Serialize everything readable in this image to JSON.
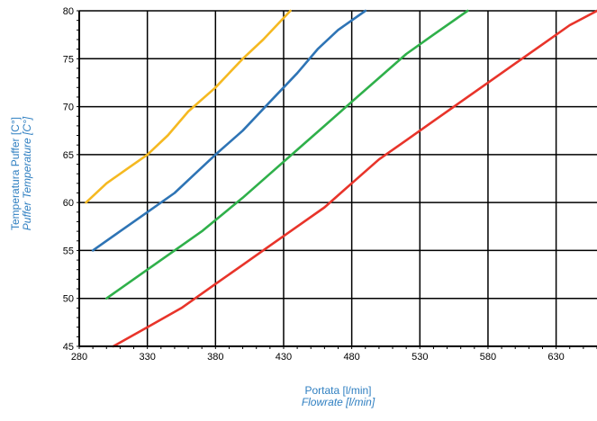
{
  "chart_data": {
    "type": "line",
    "xlabel": "Portata [l/min]",
    "xlabel_en": "Flowrate [l/min]",
    "ylabel": "Temperatura Puffer [C°]",
    "ylabel_en": "Puffer Temperature [C°]",
    "xlim": [
      280,
      660
    ],
    "ylim": [
      45,
      80
    ],
    "xticks": [
      280,
      330,
      380,
      430,
      480,
      530,
      580,
      630
    ],
    "yticks": [
      45,
      50,
      55,
      60,
      65,
      70,
      75,
      80
    ],
    "grid": true,
    "series": [
      {
        "color": "#f5b921",
        "points": [
          [
            285,
            60
          ],
          [
            300,
            62
          ],
          [
            315,
            63.5
          ],
          [
            330,
            65
          ],
          [
            345,
            67
          ],
          [
            360,
            69.5
          ],
          [
            380,
            72
          ],
          [
            400,
            75
          ],
          [
            415,
            77
          ],
          [
            435,
            80
          ]
        ]
      },
      {
        "color": "#2e74b5",
        "points": [
          [
            290,
            55
          ],
          [
            310,
            57
          ],
          [
            330,
            59
          ],
          [
            350,
            61
          ],
          [
            365,
            63
          ],
          [
            380,
            65
          ],
          [
            400,
            67.5
          ],
          [
            420,
            70.5
          ],
          [
            440,
            73.5
          ],
          [
            455,
            76
          ],
          [
            470,
            78
          ],
          [
            490,
            80
          ]
        ]
      },
      {
        "color": "#2fb04a",
        "points": [
          [
            300,
            50
          ],
          [
            325,
            52.5
          ],
          [
            350,
            55
          ],
          [
            370,
            57
          ],
          [
            400,
            60.5
          ],
          [
            420,
            63
          ],
          [
            440,
            65.5
          ],
          [
            460,
            68
          ],
          [
            480,
            70.5
          ],
          [
            500,
            73
          ],
          [
            520,
            75.5
          ],
          [
            540,
            77.5
          ],
          [
            565,
            80
          ]
        ]
      },
      {
        "color": "#e8342a",
        "points": [
          [
            305,
            45
          ],
          [
            330,
            47
          ],
          [
            355,
            49
          ],
          [
            380,
            51.5
          ],
          [
            400,
            53.5
          ],
          [
            420,
            55.5
          ],
          [
            440,
            57.5
          ],
          [
            460,
            59.5
          ],
          [
            480,
            62
          ],
          [
            500,
            64.5
          ],
          [
            520,
            66.5
          ],
          [
            540,
            68.5
          ],
          [
            560,
            70.5
          ],
          [
            580,
            72.5
          ],
          [
            600,
            74.5
          ],
          [
            620,
            76.5
          ],
          [
            640,
            78.5
          ],
          [
            660,
            80
          ]
        ]
      }
    ]
  }
}
